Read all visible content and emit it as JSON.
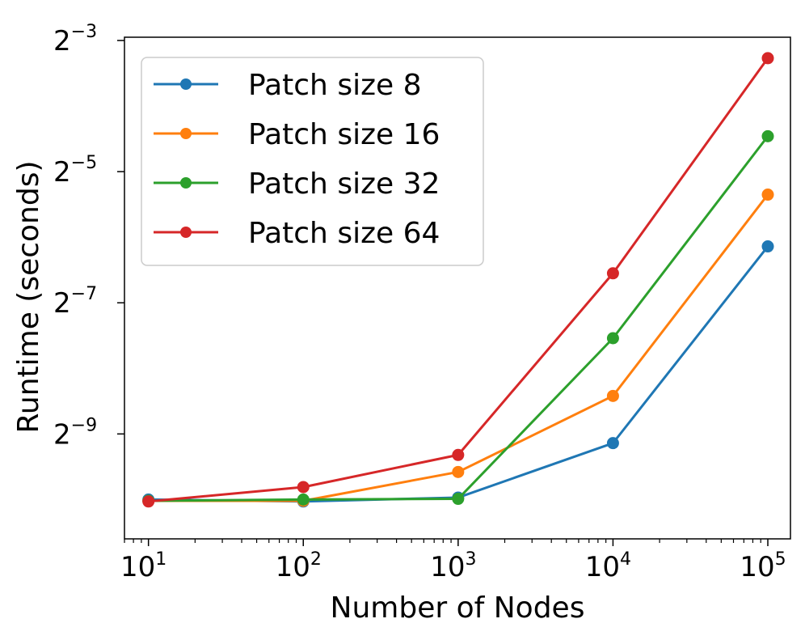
{
  "chart_data": {
    "type": "line",
    "title": "",
    "xlabel": "Number of Nodes",
    "ylabel": "Runtime (seconds)",
    "xscale": "log10",
    "yscale": "log2",
    "x": [
      10,
      100,
      1000,
      10000,
      100000
    ],
    "xlim": [
      7,
      140000
    ],
    "ylim_log2": [
      -10.6,
      -2.95
    ],
    "x_ticks": [
      {
        "value": 10,
        "base": "10",
        "exp": "1"
      },
      {
        "value": 100,
        "base": "10",
        "exp": "2"
      },
      {
        "value": 1000,
        "base": "10",
        "exp": "3"
      },
      {
        "value": 10000,
        "base": "10",
        "exp": "4"
      },
      {
        "value": 100000,
        "base": "10",
        "exp": "5"
      }
    ],
    "y_ticks": [
      {
        "log2": -3,
        "base": "2",
        "exp": "−3"
      },
      {
        "log2": -5,
        "base": "2",
        "exp": "−5"
      },
      {
        "log2": -7,
        "base": "2",
        "exp": "−7"
      },
      {
        "log2": -9,
        "base": "2",
        "exp": "−9"
      }
    ],
    "legend_position": "top-left",
    "series": [
      {
        "name": "Patch size 8",
        "color": "#1f77b4",
        "log2_values": [
          -10.0,
          -10.03,
          -9.97,
          -9.14,
          -6.14
        ]
      },
      {
        "name": "Patch size 16",
        "color": "#ff7f0e",
        "log2_values": [
          -10.02,
          -10.02,
          -9.58,
          -8.42,
          -5.35
        ]
      },
      {
        "name": "Patch size 32",
        "color": "#2ca02c",
        "log2_values": [
          -10.02,
          -10.0,
          -9.99,
          -7.54,
          -4.46
        ]
      },
      {
        "name": "Patch size 64",
        "color": "#d62728",
        "log2_values": [
          -10.03,
          -9.81,
          -9.32,
          -6.55,
          -3.27
        ]
      }
    ]
  }
}
